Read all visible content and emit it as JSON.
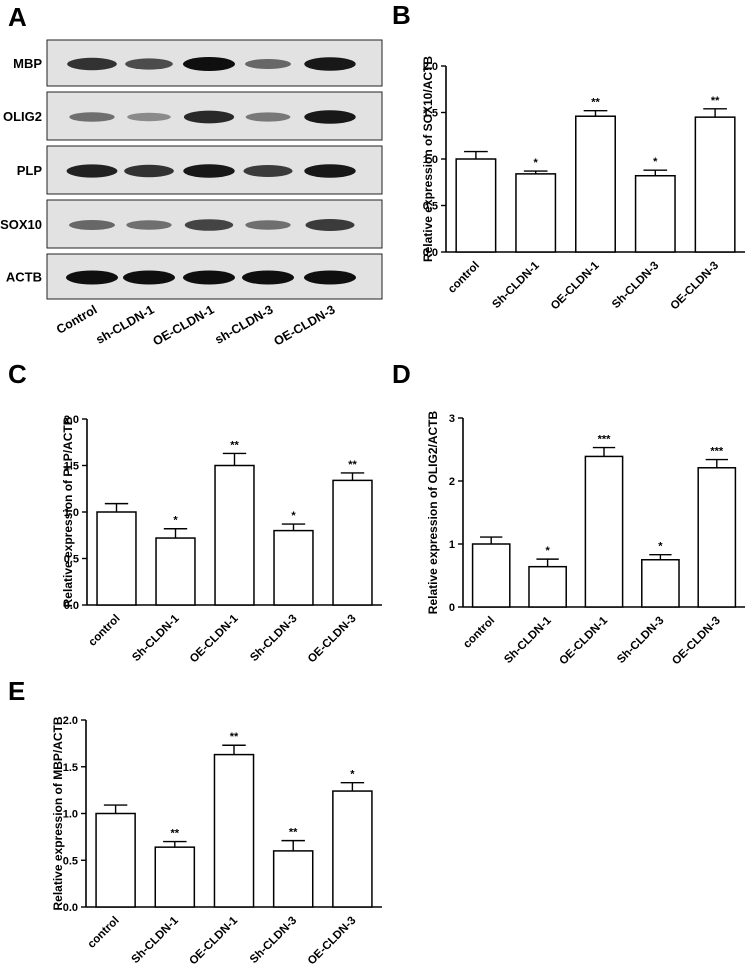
{
  "blot": {
    "letter": "A",
    "proteins": [
      "MBP",
      "OLIG2",
      "PLP",
      "SOX10",
      "ACTB"
    ],
    "lanes": [
      "Control",
      "sh-CLDN-1",
      "OE-CLDN-1",
      "sh-CLDN-3",
      "OE-CLDN-3"
    ],
    "band_intensity": [
      [
        0.8,
        0.65,
        1.0,
        0.5,
        0.95
      ],
      [
        0.45,
        0.3,
        0.85,
        0.4,
        0.95
      ],
      [
        0.9,
        0.8,
        0.95,
        0.75,
        0.95
      ],
      [
        0.5,
        0.45,
        0.7,
        0.45,
        0.75
      ],
      [
        1.0,
        1.0,
        1.0,
        1.0,
        1.0
      ]
    ]
  },
  "chart_data": [
    {
      "panel": "B",
      "type": "bar",
      "categories": [
        "control",
        "Sh-CLDN-1",
        "OE-CLDN-1",
        "Sh-CLDN-3",
        "OE-CLDN-3"
      ],
      "values": [
        1.0,
        0.84,
        1.46,
        0.82,
        1.45
      ],
      "errors": [
        0.08,
        0.03,
        0.06,
        0.06,
        0.09
      ],
      "significance": [
        "",
        "*",
        "**",
        "*",
        "**"
      ],
      "ylabel": "Relative expression of SOX10/ACTB",
      "ylim": [
        0,
        2.0
      ],
      "yticks": [
        "0.0",
        "0.5",
        "1.0",
        "1.5",
        "2.0"
      ],
      "ytick_values": [
        0,
        0.5,
        1.0,
        1.5,
        2.0
      ]
    },
    {
      "panel": "C",
      "type": "bar",
      "categories": [
        "control",
        "Sh-CLDN-1",
        "OE-CLDN-1",
        "Sh-CLDN-3",
        "OE-CLDN-3"
      ],
      "values": [
        1.0,
        0.72,
        1.5,
        0.8,
        1.34
      ],
      "errors": [
        0.09,
        0.1,
        0.13,
        0.07,
        0.08
      ],
      "significance": [
        "",
        "*",
        "**",
        "*",
        "**"
      ],
      "ylabel": "Relative expression of PLP/ACTB",
      "ylim": [
        0,
        2.0
      ],
      "yticks": [
        "0.0",
        "0.5",
        "1.0",
        "1.5",
        "2.0"
      ],
      "ytick_values": [
        0,
        0.5,
        1.0,
        1.5,
        2.0
      ]
    },
    {
      "panel": "D",
      "type": "bar",
      "categories": [
        "control",
        "Sh-CLDN-1",
        "OE-CLDN-1",
        "Sh-CLDN-3",
        "OE-CLDN-3"
      ],
      "values": [
        1.0,
        0.64,
        2.39,
        0.75,
        2.21
      ],
      "errors": [
        0.11,
        0.12,
        0.14,
        0.08,
        0.13
      ],
      "significance": [
        "",
        "*",
        "***",
        "*",
        "***"
      ],
      "ylabel": "Relative expression of OLIG2/ACTB",
      "ylim": [
        0,
        3
      ],
      "yticks": [
        "0",
        "1",
        "2",
        "3"
      ],
      "ytick_values": [
        0,
        1,
        2,
        3
      ]
    },
    {
      "panel": "E",
      "type": "bar",
      "categories": [
        "control",
        "Sh-CLDN-1",
        "OE-CLDN-1",
        "Sh-CLDN-3",
        "OE-CLDN-3"
      ],
      "values": [
        1.0,
        0.64,
        1.63,
        0.6,
        1.24
      ],
      "errors": [
        0.09,
        0.06,
        0.1,
        0.11,
        0.09
      ],
      "significance": [
        "",
        "**",
        "**",
        "**",
        "*"
      ],
      "ylabel": "Relative expression of MBP/ACTB",
      "ylim": [
        0,
        2.0
      ],
      "yticks": [
        "0.0",
        "0.5",
        "1.0",
        "1.5",
        "2.0"
      ],
      "ytick_values": [
        0,
        0.5,
        1.0,
        1.5,
        2.0
      ]
    }
  ]
}
